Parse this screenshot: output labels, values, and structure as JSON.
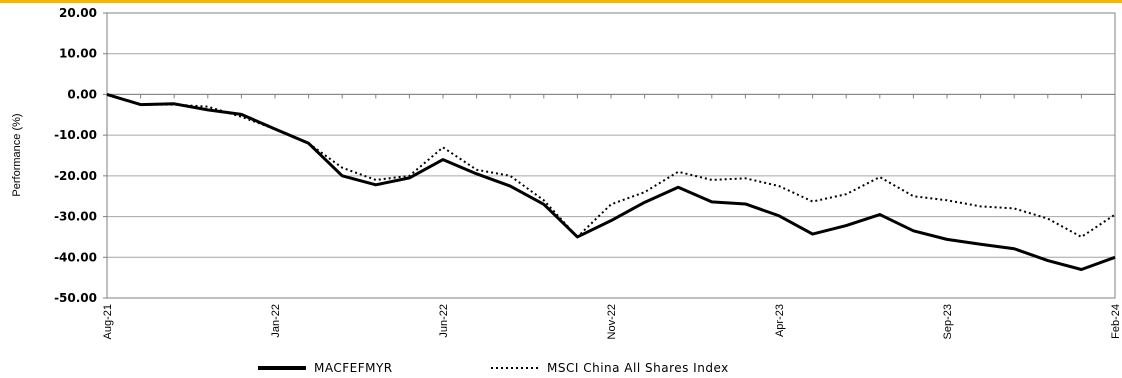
{
  "chart_data": {
    "type": "line",
    "ylabel": "Performance (%)",
    "categories": [
      "Aug-21",
      null,
      null,
      null,
      null,
      "Jan-22",
      null,
      null,
      null,
      null,
      "Jun-22",
      null,
      null,
      null,
      null,
      "Nov-22",
      null,
      null,
      null,
      null,
      "Apr-23",
      null,
      null,
      null,
      null,
      "Sep-23",
      null,
      null,
      null,
      null,
      "Feb-24"
    ],
    "series": [
      {
        "name": "MACFEFMYR",
        "color": "#000000",
        "style": "solid",
        "values": [
          0,
          -2.5,
          -2.3,
          -3.8,
          -4.9,
          -8.5,
          -12,
          -20,
          -22.2,
          -20.5,
          -16,
          -19.5,
          -22.5,
          -27,
          -35,
          -31,
          -26.5,
          -22.8,
          -26.4,
          -26.9,
          -29.8,
          -34.3,
          -32.2,
          -29.5,
          -33.5,
          -35.6,
          -36.8,
          -37.9,
          -40.8,
          -43,
          -40
        ]
      },
      {
        "name": "MSCI China All Shares Index",
        "color": "#000000",
        "style": "dotted",
        "values": [
          0,
          -2.5,
          -2.5,
          -3,
          -5.5,
          -8.5,
          -12,
          -18,
          -21,
          -20,
          -13,
          -18.5,
          -20,
          -26,
          -35,
          -27,
          -24,
          -19,
          -21,
          -20.6,
          -22.5,
          -26.3,
          -24.5,
          -20.3,
          -25,
          -26,
          -27.5,
          -28,
          -30.5,
          -35,
          -29.5
        ]
      }
    ],
    "ylim": [
      -50,
      20
    ],
    "yticks": [
      {
        "value": -50,
        "label": "-50.00"
      },
      {
        "value": -40,
        "label": "-40.00"
      },
      {
        "value": -30,
        "label": "-30.00"
      },
      {
        "value": -20,
        "label": "-20.00"
      },
      {
        "value": -10,
        "label": "-10.00"
      },
      {
        "value": 0,
        "label": "0.00"
      },
      {
        "value": 10,
        "label": "10.00"
      },
      {
        "value": 20,
        "label": "20.00"
      }
    ],
    "grid": true,
    "legend": "bottom"
  }
}
